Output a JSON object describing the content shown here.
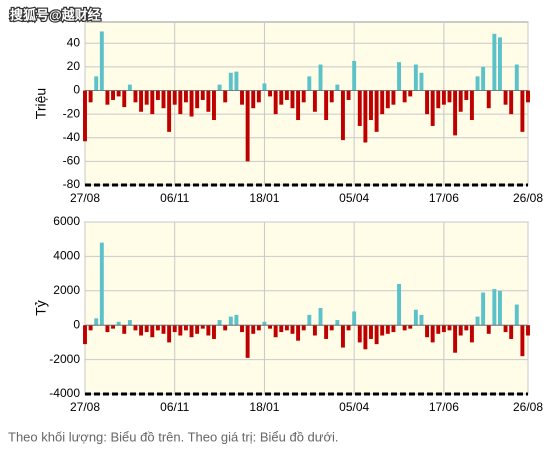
{
  "watermark": "搜狐号@越财经",
  "caption": "Theo khối lượng: Biểu đồ trên. Theo giá trị: Biểu đồ dưới.",
  "chart_data": [
    {
      "type": "bar",
      "y_label": "Triệu",
      "pos_color": "#5bc2c9",
      "neg_color": "#c00000",
      "grid": true,
      "categories": [
        "27/08",
        null,
        null,
        null,
        null,
        null,
        null,
        null,
        null,
        null,
        null,
        null,
        null,
        null,
        null,
        null,
        "06/11",
        null,
        null,
        null,
        null,
        null,
        null,
        null,
        null,
        null,
        null,
        null,
        null,
        null,
        null,
        null,
        "18/01",
        null,
        null,
        null,
        null,
        null,
        null,
        null,
        null,
        null,
        null,
        null,
        null,
        null,
        null,
        null,
        "05/04",
        null,
        null,
        null,
        null,
        null,
        null,
        null,
        null,
        null,
        null,
        null,
        null,
        null,
        null,
        null,
        "17/06",
        null,
        null,
        null,
        null,
        null,
        null,
        null,
        null,
        null,
        null,
        null,
        null,
        null,
        null,
        "26/08"
      ],
      "values": [
        -43,
        -10,
        12,
        50,
        -12,
        -8,
        -5,
        -14,
        5,
        -10,
        -18,
        -12,
        -20,
        -8,
        -15,
        -35,
        -12,
        -20,
        -10,
        -22,
        -15,
        -8,
        -18,
        -25,
        5,
        -10,
        15,
        16,
        -12,
        -60,
        -15,
        -10,
        6,
        -5,
        -20,
        -12,
        -8,
        -15,
        -25,
        -10,
        12,
        -18,
        22,
        -25,
        -10,
        5,
        -42,
        -8,
        25,
        -30,
        -44,
        -25,
        -35,
        -20,
        -15,
        -12,
        24,
        -10,
        -5,
        22,
        15,
        -20,
        -30,
        -15,
        -12,
        -10,
        -38,
        -18,
        -8,
        -25,
        12,
        20,
        -15,
        48,
        45,
        -12,
        -20,
        22,
        -35,
        -10
      ],
      "ylim": [
        -80,
        58
      ],
      "yticks": [
        -80,
        -60,
        -40,
        -20,
        0,
        20,
        40
      ]
    },
    {
      "type": "bar",
      "y_label": "Tỷ",
      "pos_color": "#5bc2c9",
      "neg_color": "#c00000",
      "grid": true,
      "categories": [
        "27/08",
        null,
        null,
        null,
        null,
        null,
        null,
        null,
        null,
        null,
        null,
        null,
        null,
        null,
        null,
        null,
        "06/11",
        null,
        null,
        null,
        null,
        null,
        null,
        null,
        null,
        null,
        null,
        null,
        null,
        null,
        null,
        null,
        "18/01",
        null,
        null,
        null,
        null,
        null,
        null,
        null,
        null,
        null,
        null,
        null,
        null,
        null,
        null,
        null,
        "05/04",
        null,
        null,
        null,
        null,
        null,
        null,
        null,
        null,
        null,
        null,
        null,
        null,
        null,
        null,
        null,
        "17/06",
        null,
        null,
        null,
        null,
        null,
        null,
        null,
        null,
        null,
        null,
        null,
        null,
        null,
        null,
        "26/08"
      ],
      "values": [
        -1100,
        -300,
        400,
        4800,
        -400,
        -200,
        200,
        -500,
        300,
        -300,
        -600,
        -400,
        -700,
        -300,
        -500,
        -1000,
        -400,
        -600,
        -300,
        -700,
        -500,
        -200,
        -600,
        -800,
        300,
        -300,
        500,
        600,
        -400,
        -1900,
        -500,
        -300,
        200,
        -200,
        -700,
        -400,
        -300,
        -500,
        -900,
        -300,
        600,
        -600,
        1000,
        -800,
        -300,
        300,
        -1300,
        -300,
        800,
        -1000,
        -1400,
        -800,
        -1100,
        -600,
        -500,
        -400,
        2400,
        -300,
        -200,
        900,
        600,
        -700,
        -1000,
        -500,
        -400,
        -300,
        -1600,
        -600,
        -300,
        -1000,
        500,
        1900,
        -500,
        2100,
        2000,
        -400,
        -800,
        1200,
        -1800,
        -600
      ],
      "ylim": [
        -4000,
        6000
      ],
      "yticks": [
        -4000,
        -2000,
        0,
        2000,
        4000,
        6000
      ]
    }
  ]
}
